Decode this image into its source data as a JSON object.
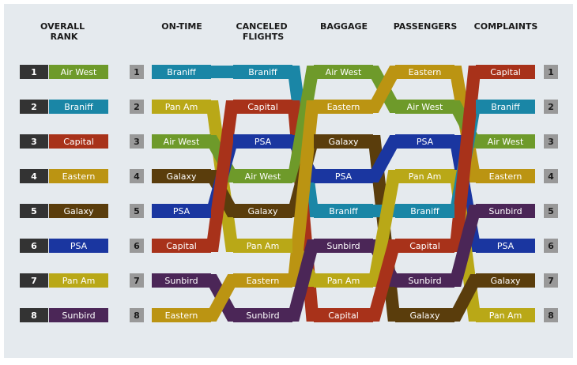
{
  "colors": {
    "background": "#e5eaee",
    "rank_box_dark": "#333333",
    "rank_box_gray": "#999999",
    "airlines": {
      "Air West": "#6e9a2a",
      "Braniff": "#1a86a6",
      "Capital": "#a8321a",
      "Eastern": "#bb9412",
      "Galaxy": "#5a3d0c",
      "PSA": "#1a36a0",
      "Pan Am": "#b9a817",
      "Sunbird": "#4b2657"
    }
  },
  "headers": {
    "overall": "OVERALL RANK",
    "ontime": "ON-TIME",
    "canceled": "CANCELED FLIGHTS",
    "baggage": "BAGGAGE",
    "passengers": "PASSENGERS",
    "complaints": "COMPLAINTS"
  },
  "chart_data": {
    "type": "table",
    "ranks": [
      "1",
      "2",
      "3",
      "4",
      "5",
      "6",
      "7",
      "8"
    ],
    "overall": [
      "Air West",
      "Braniff",
      "Capital",
      "Eastern",
      "Galaxy",
      "PSA",
      "Pan Am",
      "Sunbird"
    ],
    "columns": [
      {
        "key": "ontime",
        "ranking": [
          "Braniff",
          "Pan Am",
          "Air West",
          "Galaxy",
          "PSA",
          "Capital",
          "Sunbird",
          "Eastern"
        ]
      },
      {
        "key": "canceled",
        "ranking": [
          "Braniff",
          "Capital",
          "PSA",
          "Air West",
          "Galaxy",
          "Pan Am",
          "Eastern",
          "Sunbird"
        ]
      },
      {
        "key": "baggage",
        "ranking": [
          "Air West",
          "Eastern",
          "Galaxy",
          "PSA",
          "Braniff",
          "Sunbird",
          "Pan Am",
          "Capital"
        ]
      },
      {
        "key": "passengers",
        "ranking": [
          "Eastern",
          "Air West",
          "PSA",
          "Pan Am",
          "Braniff",
          "Capital",
          "Sunbird",
          "Galaxy"
        ]
      },
      {
        "key": "complaints",
        "ranking": [
          "Capital",
          "Braniff",
          "Air West",
          "Eastern",
          "Sunbird",
          "PSA",
          "Galaxy",
          "Pan Am"
        ]
      }
    ]
  }
}
